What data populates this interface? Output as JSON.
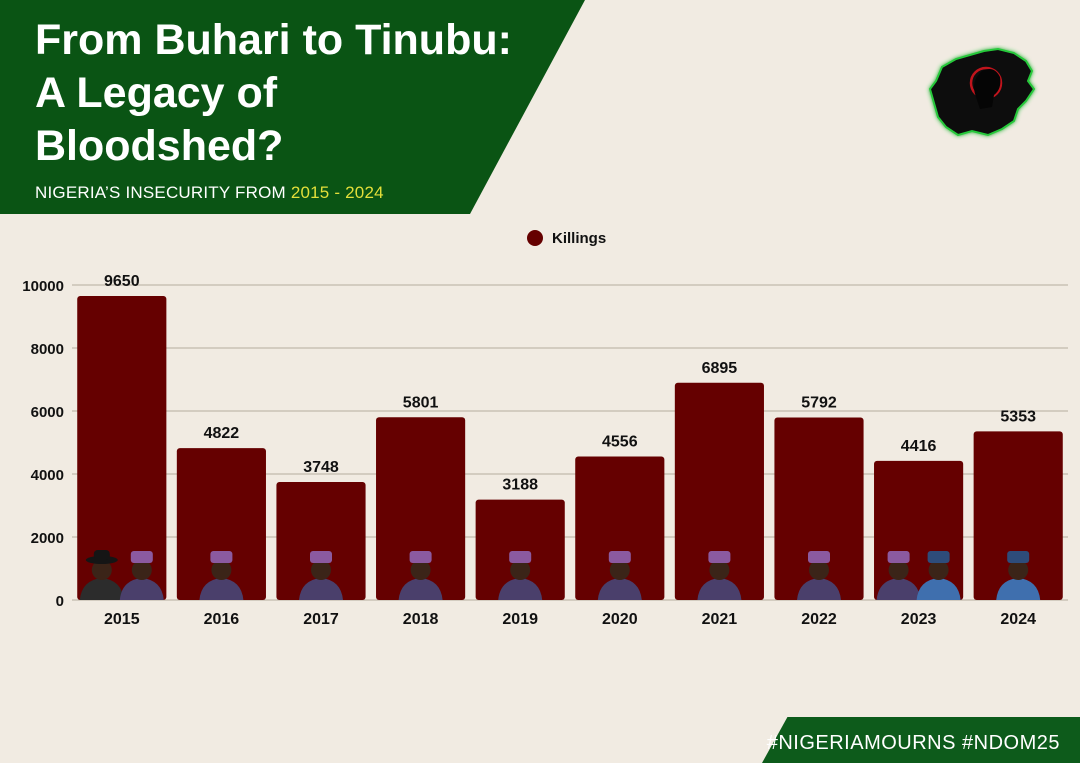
{
  "header": {
    "title": "From Buhari to Tinubu:\nA Legacy of\nBloodshed?",
    "subtitle_prefix": "NIGERIA’S INSECURITY FROM ",
    "subtitle_years": "2015 - 2024",
    "banner_color": "#0a5414",
    "years_color": "#e3df3a"
  },
  "footer": {
    "hashtags": "#NIGERIAMOURNS #NDOM25"
  },
  "logo": {
    "icon": "nigeria-map-silhouette-icon"
  },
  "chart_data": {
    "type": "bar",
    "title": "",
    "xlabel": "",
    "ylabel": "",
    "categories": [
      "2015",
      "2016",
      "2017",
      "2018",
      "2019",
      "2020",
      "2021",
      "2022",
      "2023",
      "2024"
    ],
    "series": [
      {
        "name": "Killings",
        "color": "#650000",
        "values": [
          9650,
          4822,
          3748,
          5801,
          3188,
          4556,
          6895,
          5792,
          4416,
          5353
        ]
      }
    ],
    "ylim": [
      0,
      10000
    ],
    "yticks": [
      0,
      2000,
      4000,
      6000,
      8000,
      10000
    ],
    "grid": true,
    "legend": "top-center",
    "data_labels": true,
    "portraits": [
      [
        "jonathan",
        "buhari"
      ],
      [
        "buhari"
      ],
      [
        "buhari"
      ],
      [
        "buhari"
      ],
      [
        "buhari"
      ],
      [
        "buhari"
      ],
      [
        "buhari"
      ],
      [
        "buhari"
      ],
      [
        "buhari",
        "tinubu"
      ],
      [
        "tinubu"
      ]
    ]
  }
}
